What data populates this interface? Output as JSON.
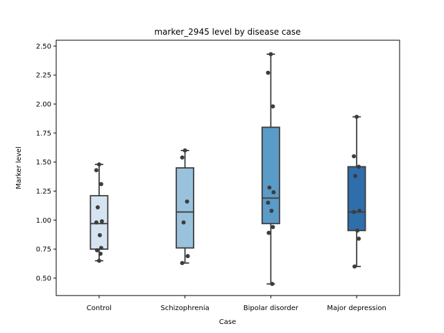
{
  "chart_data": {
    "type": "box",
    "title": "marker_2945 level by disease case",
    "xlabel": "Case",
    "ylabel": "Marker level",
    "ylim": [
      0.35,
      2.55
    ],
    "yticks": [
      "0.50",
      "0.75",
      "1.00",
      "1.25",
      "1.50",
      "1.75",
      "2.00",
      "2.25",
      "2.50"
    ],
    "grid": false,
    "categories": [
      "Control",
      "Schizophrenia",
      "Bipolar disorder",
      "Major depression"
    ],
    "colors": [
      "#d6e4f2",
      "#9ac2dc",
      "#5b9bc8",
      "#2e6eab"
    ],
    "boxes": [
      {
        "whisker_low": 0.65,
        "q1": 0.75,
        "median": 0.97,
        "q3": 1.21,
        "whisker_high": 1.48
      },
      {
        "whisker_low": 0.63,
        "q1": 0.76,
        "median": 1.07,
        "q3": 1.45,
        "whisker_high": 1.6
      },
      {
        "whisker_low": 0.45,
        "q1": 0.97,
        "median": 1.19,
        "q3": 1.8,
        "whisker_high": 2.43
      },
      {
        "whisker_low": 0.6,
        "q1": 0.91,
        "median": 1.07,
        "q3": 1.46,
        "whisker_high": 1.89
      }
    ],
    "points": [
      [
        1.48,
        1.43,
        1.31,
        1.11,
        0.99,
        0.98,
        0.87,
        0.76,
        0.74,
        0.71,
        0.65
      ],
      [
        1.6,
        1.54,
        1.16,
        0.98,
        0.69,
        0.63
      ],
      [
        2.43,
        2.27,
        1.98,
        1.28,
        1.24,
        1.15,
        1.08,
        0.94,
        0.89,
        0.45
      ],
      [
        1.89,
        1.55,
        1.46,
        1.38,
        1.08,
        1.07,
        0.91,
        0.84,
        0.6
      ]
    ]
  }
}
